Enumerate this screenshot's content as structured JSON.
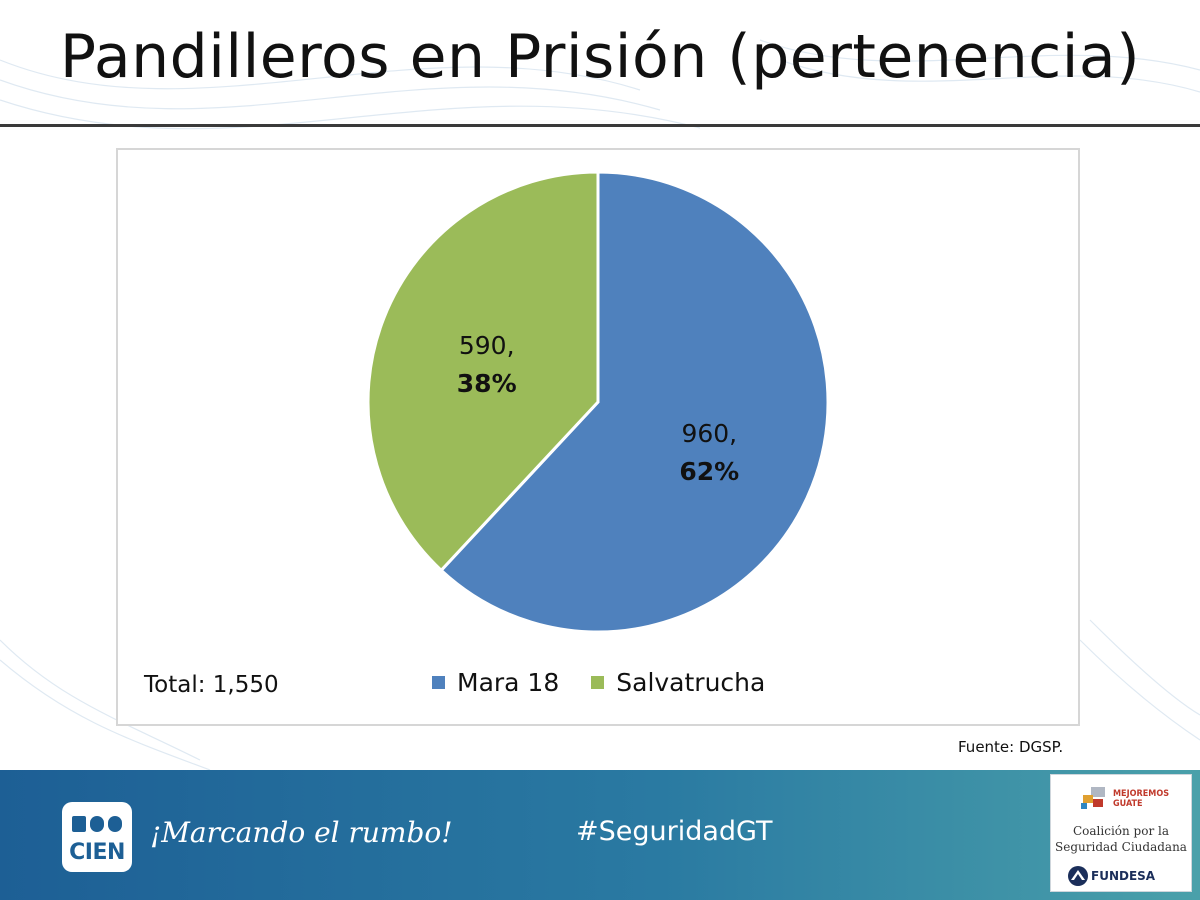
{
  "slide": {
    "title": "Pandilleros en Prisión (pertenencia)",
    "total": "Total: 1,550",
    "source": "Fuente: DGSP."
  },
  "chart_data": {
    "type": "pie",
    "title": "Pandilleros en Prisión (pertenencia)",
    "total": 1550,
    "slices": [
      {
        "name": "Mara 18",
        "value": 960,
        "percent": 62,
        "color": "#4f81bd",
        "label_value": "960,",
        "label_percent": "62%"
      },
      {
        "name": "Salvatrucha",
        "value": 590,
        "percent": 38,
        "color": "#9bbb59",
        "label_value": "590,",
        "label_percent": "38%"
      }
    ],
    "legend_position": "bottom"
  },
  "footer": {
    "logo_text": "CIEN",
    "tagline": "¡Marcando el rumbo!",
    "hashtag": "#SeguridadGT",
    "partner": {
      "mejoremos": "MEJOREMOS",
      "guate": "GUATE",
      "coalition_line1": "Coalición por la",
      "coalition_line2": "Seguridad Ciudadana",
      "fundesa": "FUNDESA"
    }
  }
}
